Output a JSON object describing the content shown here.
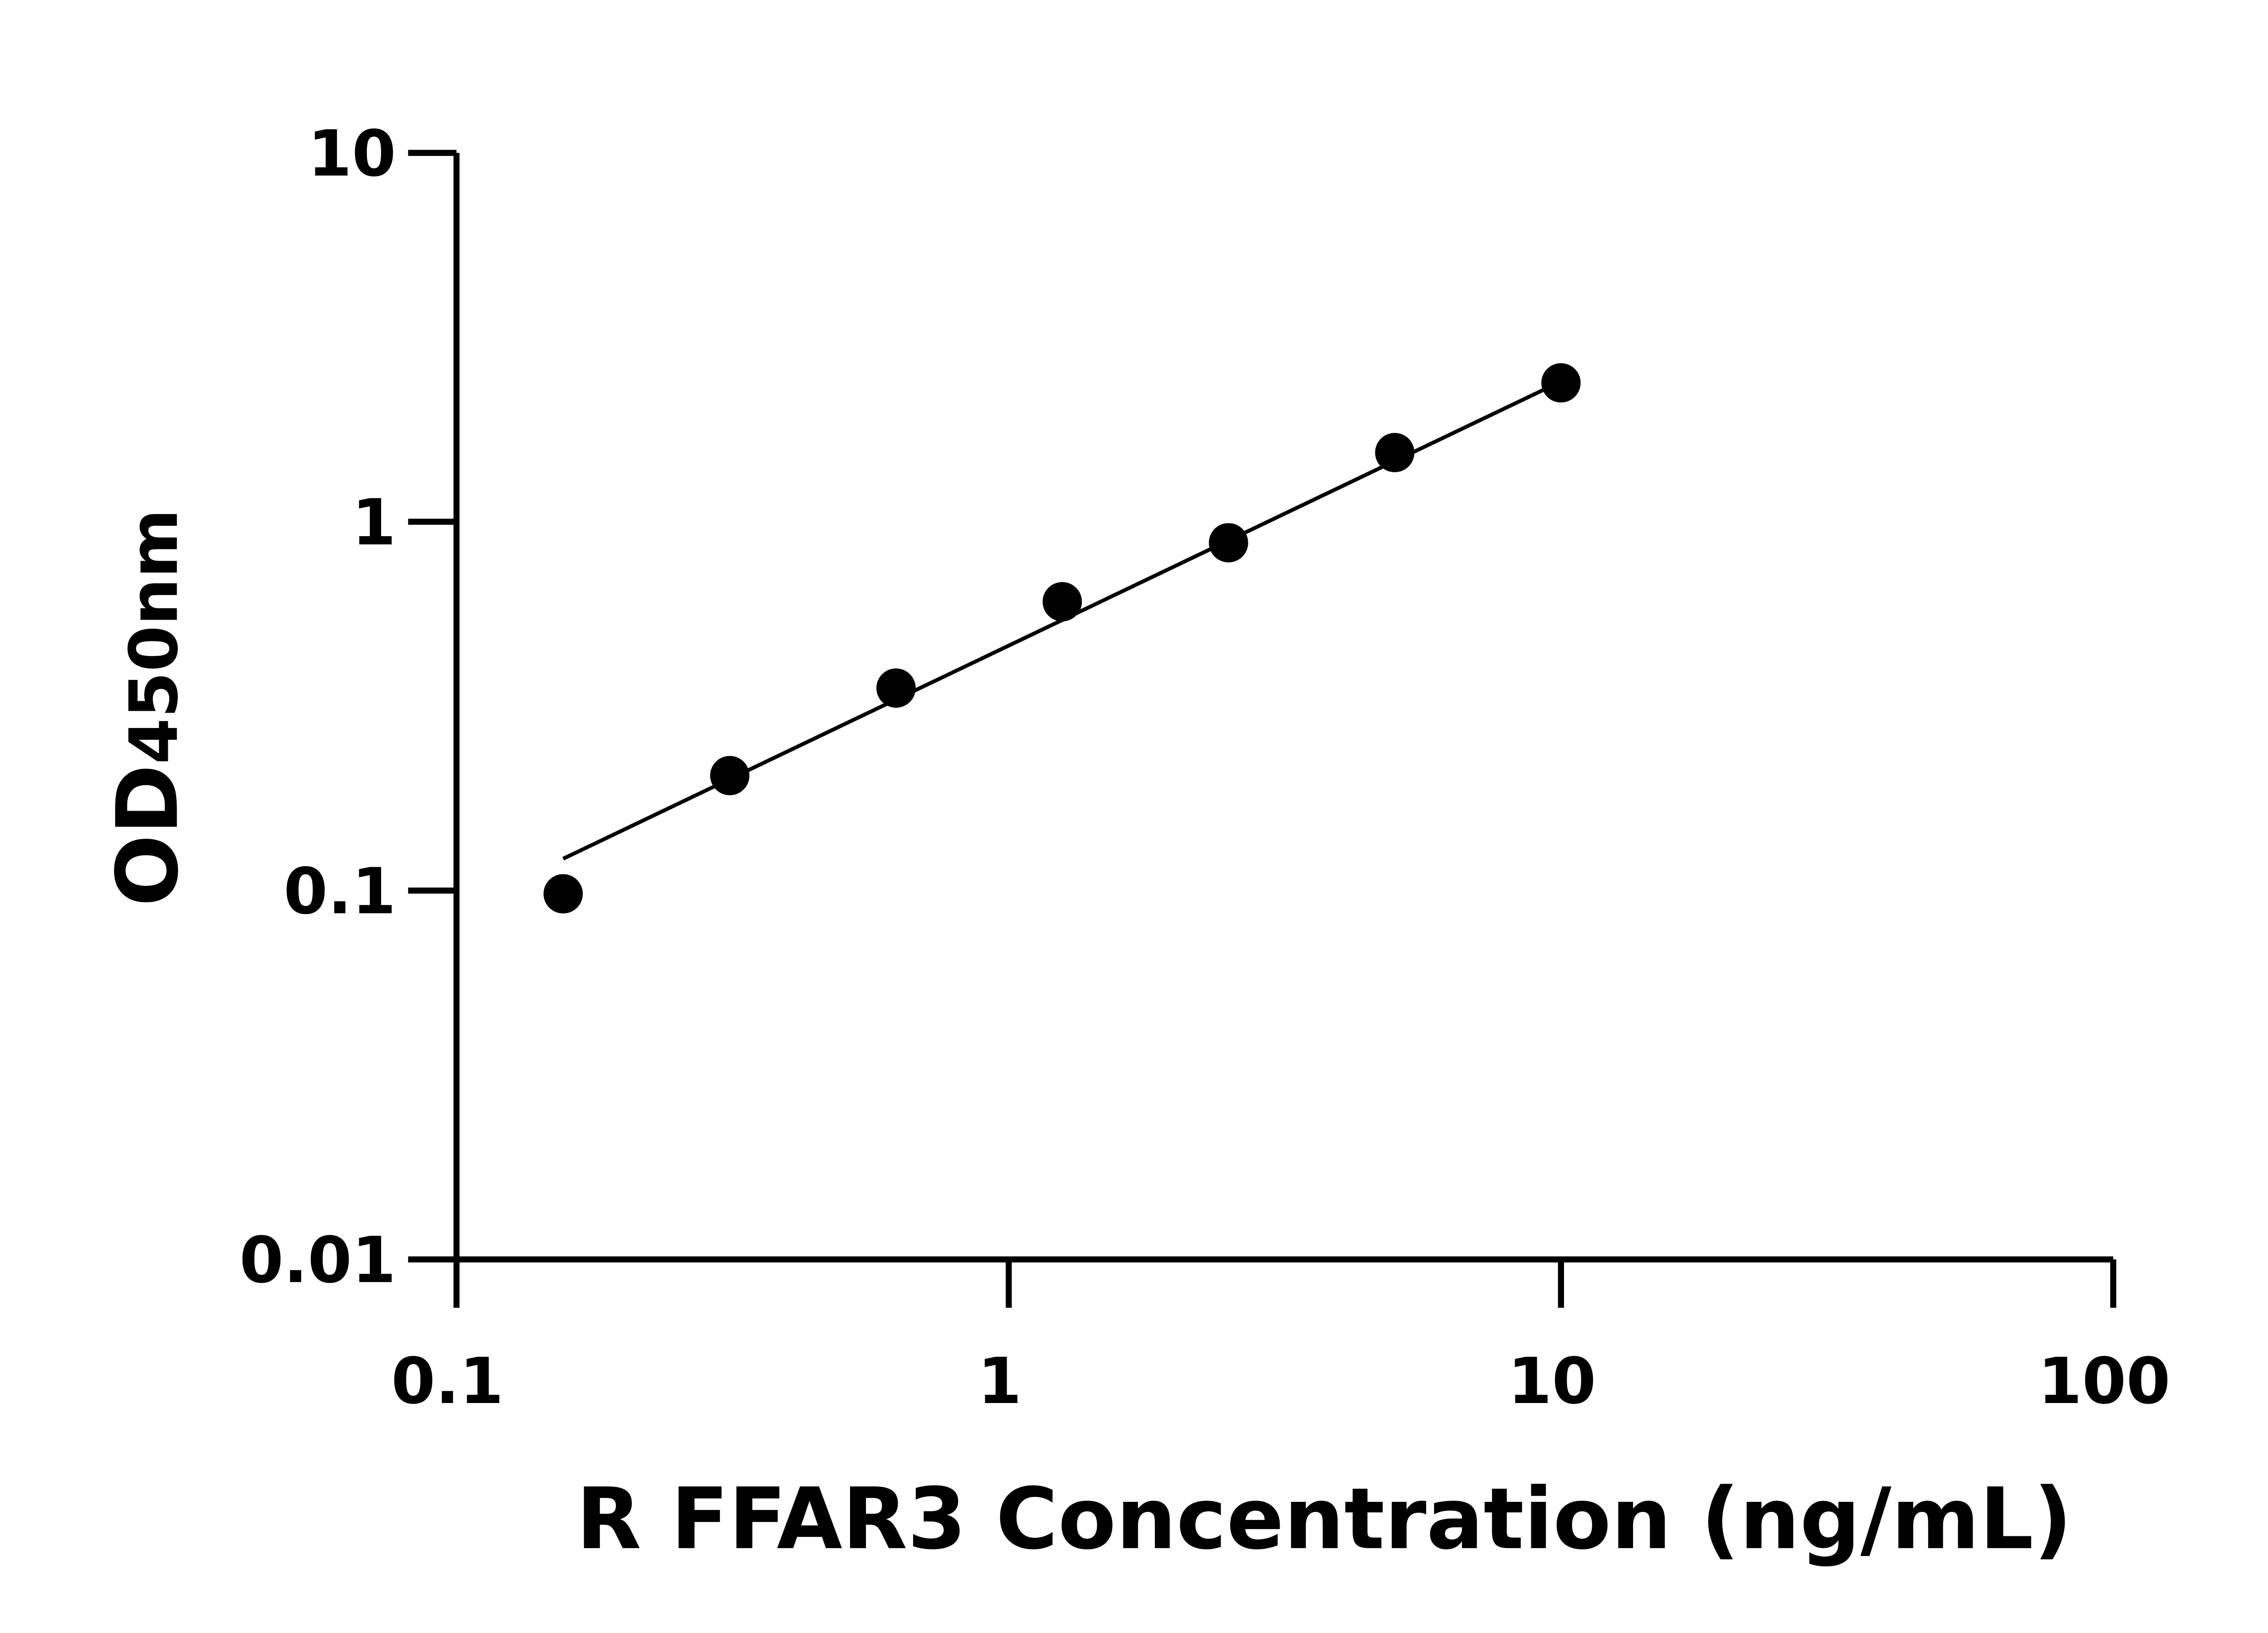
{
  "chart_data": {
    "type": "scatter",
    "title": "",
    "xlabel": "R FFAR3 Concentration (ng/mL)",
    "ylabel": {
      "main": "OD",
      "subscript": "450nm"
    },
    "xscale": "log",
    "yscale": "log",
    "xlim": [
      0.1,
      100
    ],
    "ylim": [
      0.01,
      10
    ],
    "xticks": [
      0.1,
      1,
      10,
      100
    ],
    "xtick_labels": [
      "0.1",
      "1",
      "10",
      "100"
    ],
    "yticks": [
      0.01,
      0.1,
      1,
      10
    ],
    "ytick_labels": [
      "0.01",
      "0.1",
      "1",
      "10"
    ],
    "grid": false,
    "legend": "none",
    "colors": {
      "points": "#000000",
      "line": "#000000",
      "axes": "#000000"
    },
    "series": [
      {
        "x": [
          0.156,
          0.3125,
          0.625,
          1.25,
          2.5,
          5,
          10
        ],
        "y": [
          0.098,
          0.205,
          0.354,
          0.607,
          0.877,
          1.54,
          2.38
        ]
      }
    ],
    "fit_line": {
      "x": [
        0.156,
        10
      ],
      "y": [
        0.122,
        2.4
      ]
    }
  }
}
